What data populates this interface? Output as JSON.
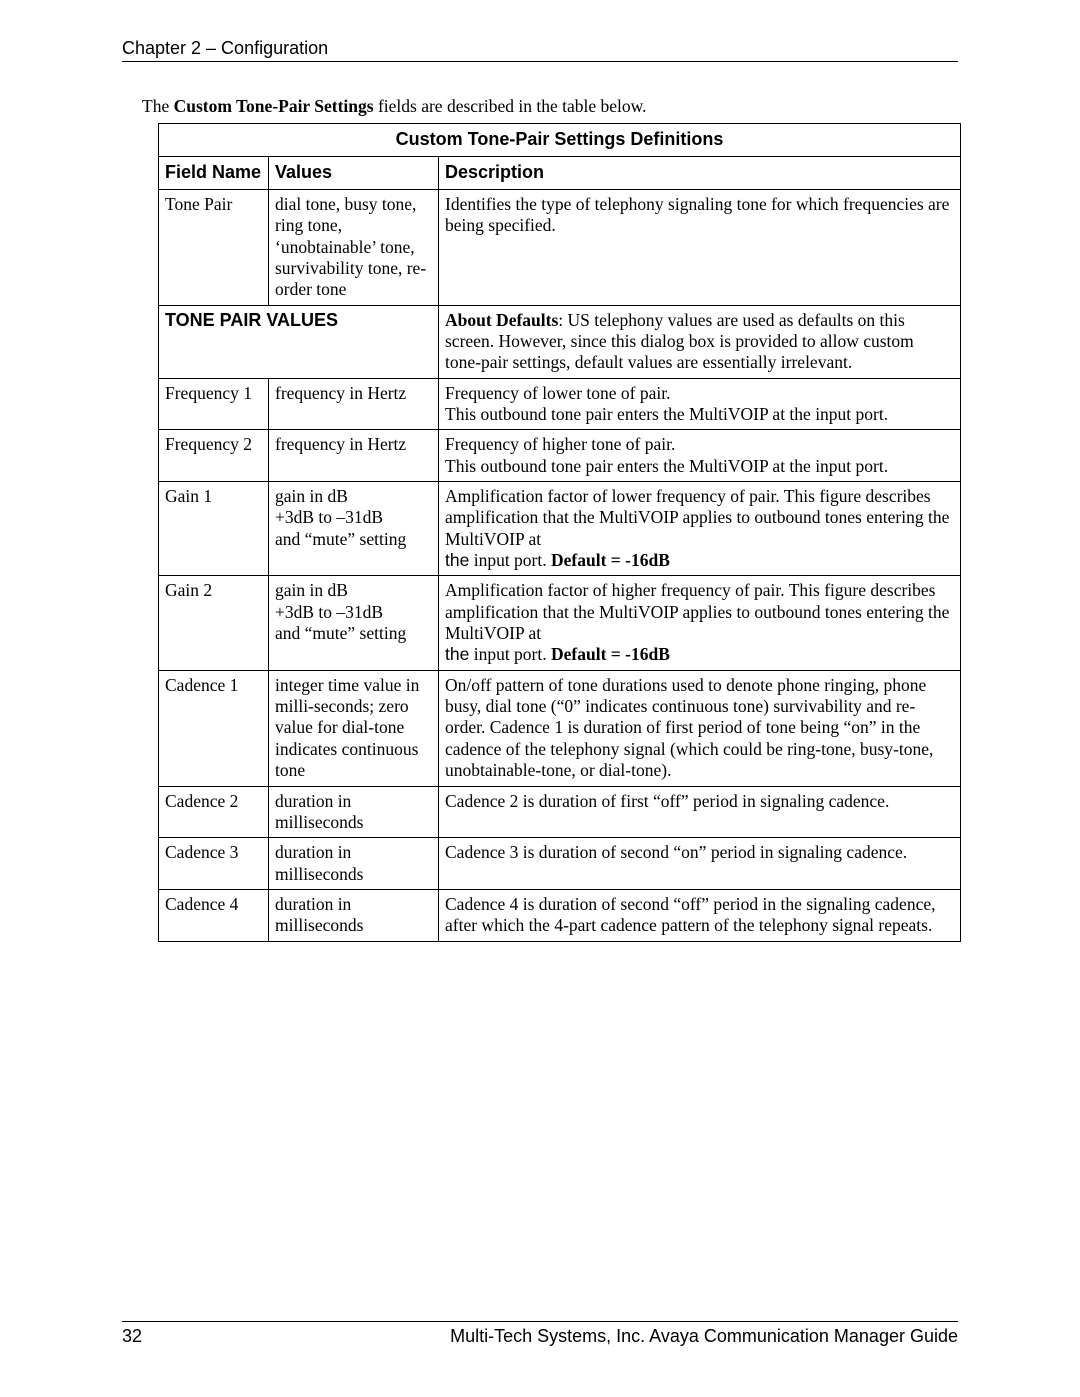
{
  "header": {
    "chapter": "Chapter 2 – Configuration"
  },
  "intro": {
    "prefix": "The ",
    "bold": "Custom Tone-Pair Settings",
    "suffix": " fields are described in the table below."
  },
  "table": {
    "title": "Custom Tone-Pair Settings Definitions",
    "columns": {
      "field": "Field Name",
      "values": "Values",
      "description": "Description"
    },
    "tone_pair": {
      "field": "Tone Pair",
      "values": "dial tone, busy tone, ring tone, ‘unobtainable’ tone,  survivability tone, re-order tone",
      "desc": "Identifies the type of telephony signaling tone for which frequencies are being specified."
    },
    "section": {
      "label": "TONE PAIR VALUES",
      "desc_bold": "About Defaults",
      "desc_rest": ":  US telephony values are used as defaults on this screen.  However, since this dialog box is provided to allow custom tone-pair settings, default values are essentially irrelevant."
    },
    "freq1": {
      "field": "Frequency 1",
      "values": "frequency in Hertz",
      "desc_l1": "Frequency of lower tone of pair.",
      "desc_l2": "This outbound tone pair enters the MultiVOIP at the input port."
    },
    "freq2": {
      "field": "Frequency 2",
      "values": "frequency in Hertz",
      "desc_l1": "Frequency of higher tone of pair.",
      "desc_l2": "This outbound tone pair enters the MultiVOIP at the input port."
    },
    "gain1": {
      "field": "Gain 1",
      "values_l1": "gain in dB",
      "values_l2": "+3dB to –31dB",
      "values_l3": "and  “mute” setting",
      "desc_main": "Amplification factor of  lower frequency of pair. This figure describes amplification that the MultiVOIP applies to outbound tones entering the MultiVOIP at",
      "desc_span1": "the",
      "desc_span2": " input port.  ",
      "desc_default": "Default = -16dB"
    },
    "gain2": {
      "field": "Gain 2",
      "values_l1": "gain in dB",
      "values_l2": "+3dB to –31dB",
      "values_l3": "and  “mute” setting",
      "desc_main": "Amplification factor of  higher frequency of pair. This figure describes amplification that the MultiVOIP applies to outbound tones entering the MultiVOIP at",
      "desc_span1": "the",
      "desc_span2": " input port.  ",
      "desc_default": "Default = -16dB"
    },
    "cad1": {
      "field": "Cadence 1",
      "values": "integer time value in milli-seconds; zero value for dial-tone indicates continuous tone",
      "desc": "On/off pattern of tone durations used to denote phone ringing, phone busy, dial tone (“0” indicates continuous tone) survivability and re-order.  Cadence 1 is duration of first period of tone being “on” in the cadence of the telephony signal (which could be ring-tone, busy-tone, unobtainable-tone, or dial-tone)."
    },
    "cad2": {
      "field": "Cadence 2",
      "values": "duration in milliseconds",
      "desc": "Cadence 2 is duration of first “off” period in signaling cadence."
    },
    "cad3": {
      "field": "Cadence 3",
      "values": "duration in milliseconds",
      "desc": "Cadence 3 is duration of second “on” period in signaling cadence."
    },
    "cad4": {
      "field": "Cadence 4",
      "values": "duration in milliseconds",
      "desc": "Cadence 4 is duration of second “off” period in the signaling cadence, after which the 4-part cadence pattern of the telephony signal repeats."
    }
  },
  "footer": {
    "page": "32",
    "text": "Multi-Tech Systems, Inc. Avaya Communication Manager Guide"
  }
}
